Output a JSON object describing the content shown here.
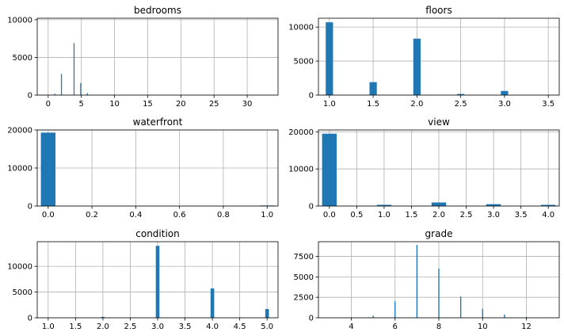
{
  "figure": {
    "bar_color": "#1f77b4",
    "grid_color": "#b0b0b0"
  },
  "chart_data": [
    {
      "type": "bar",
      "title": "bedrooms",
      "xlim": [
        -1.65,
        34.65
      ],
      "ylim": [
        0,
        10200
      ],
      "xticks": [
        0,
        5,
        10,
        15,
        20,
        25,
        30
      ],
      "yticks": [
        0,
        5000,
        10000
      ],
      "ytick_labels": [
        "0",
        "5000",
        "10000"
      ],
      "grid": true,
      "bars": [
        {
          "x": 1.0,
          "width": 0.15,
          "value": 200
        },
        {
          "x": 2.0,
          "width": 0.15,
          "value": 2800
        },
        {
          "x": 3.9,
          "width": 0.15,
          "value": 6900
        },
        {
          "x": 4.9,
          "width": 0.15,
          "value": 1600
        },
        {
          "x": 5.9,
          "width": 0.15,
          "value": 270
        },
        {
          "x": 6.9,
          "width": 0.15,
          "value": 40
        }
      ]
    },
    {
      "type": "bar",
      "title": "floors",
      "xlim": [
        0.875,
        3.625
      ],
      "ylim": [
        0,
        11300
      ],
      "xticks": [
        1.0,
        1.5,
        2.0,
        2.5,
        3.0,
        3.5
      ],
      "xtick_labels": [
        "1.0",
        "1.5",
        "2.0",
        "2.5",
        "3.0",
        "3.5"
      ],
      "yticks": [
        0,
        5000,
        10000
      ],
      "ytick_labels": [
        "0",
        "5000",
        "10000"
      ],
      "grid": true,
      "bars": [
        {
          "x": 1.0,
          "width": 0.0833,
          "value": 10700
        },
        {
          "x": 1.5,
          "width": 0.0833,
          "value": 1900
        },
        {
          "x": 2.0,
          "width": 0.0833,
          "value": 8300
        },
        {
          "x": 2.5,
          "width": 0.0833,
          "value": 160
        },
        {
          "x": 3.0,
          "width": 0.0833,
          "value": 610
        },
        {
          "x": 3.5,
          "width": 0.0833,
          "value": 8
        }
      ]
    },
    {
      "type": "bar",
      "title": "waterfront",
      "xlim": [
        -0.05,
        1.05
      ],
      "ylim": [
        0,
        20000
      ],
      "xticks": [
        0.0,
        0.2,
        0.4,
        0.6,
        0.8,
        1.0
      ],
      "xtick_labels": [
        "0.0",
        "0.2",
        "0.4",
        "0.6",
        "0.8",
        "1.0"
      ],
      "yticks": [
        0,
        10000,
        20000
      ],
      "ytick_labels": [
        "0",
        "10000",
        "20000"
      ],
      "grid": true,
      "bars": [
        {
          "x": 0.0,
          "width": 0.0667,
          "value": 19300
        },
        {
          "x": 1.0,
          "width": 0.0667,
          "value": 150
        }
      ]
    },
    {
      "type": "bar",
      "title": "view",
      "xlim": [
        -0.2,
        4.2
      ],
      "ylim": [
        0,
        20500
      ],
      "xticks": [
        0.0,
        0.5,
        1.0,
        1.5,
        2.0,
        2.5,
        3.0,
        3.5,
        4.0
      ],
      "xtick_labels": [
        "0.0",
        "0.5",
        "1.0",
        "1.5",
        "2.0",
        "2.5",
        "3.0",
        "3.5",
        "4.0"
      ],
      "yticks": [
        0,
        10000,
        20000
      ],
      "ytick_labels": [
        "0",
        "10000",
        "20000"
      ],
      "grid": true,
      "bars": [
        {
          "x": 0.0,
          "width": 0.2667,
          "value": 19500
        },
        {
          "x": 1.0,
          "width": 0.2667,
          "value": 330
        },
        {
          "x": 2.0,
          "width": 0.2667,
          "value": 960
        },
        {
          "x": 3.0,
          "width": 0.2667,
          "value": 510
        },
        {
          "x": 4.0,
          "width": 0.2667,
          "value": 320
        }
      ]
    },
    {
      "type": "bar",
      "title": "condition",
      "xlim": [
        0.8,
        5.2
      ],
      "ylim": [
        0,
        14800
      ],
      "xticks": [
        1.0,
        1.5,
        2.0,
        2.5,
        3.0,
        3.5,
        4.0,
        4.5,
        5.0
      ],
      "xtick_labels": [
        "1.0",
        "1.5",
        "2.0",
        "2.5",
        "3.0",
        "3.5",
        "4.0",
        "4.5",
        "5.0"
      ],
      "yticks": [
        0,
        5000,
        10000
      ],
      "ytick_labels": [
        "0",
        "5000",
        "10000"
      ],
      "grid": true,
      "bars": [
        {
          "x": 1.0,
          "width": 0.0667,
          "value": 30
        },
        {
          "x": 2.0,
          "width": 0.0667,
          "value": 170
        },
        {
          "x": 3.0,
          "width": 0.0667,
          "value": 14000
        },
        {
          "x": 4.0,
          "width": 0.0667,
          "value": 5700
        },
        {
          "x": 5.0,
          "width": 0.0667,
          "value": 1700
        }
      ]
    },
    {
      "type": "bar",
      "title": "grade",
      "xlim": [
        2.5,
        13.5
      ],
      "ylim": [
        0,
        9300
      ],
      "xticks": [
        4,
        6,
        8,
        10,
        12
      ],
      "yticks": [
        0,
        2500,
        5000,
        7500
      ],
      "ytick_labels": [
        "0",
        "2500",
        "5000",
        "7500"
      ],
      "grid": true,
      "bars": [
        {
          "x": 3,
          "width": 0.05,
          "value": 3
        },
        {
          "x": 4,
          "width": 0.05,
          "value": 30
        },
        {
          "x": 5,
          "width": 0.05,
          "value": 250
        },
        {
          "x": 6,
          "width": 0.05,
          "value": 2000
        },
        {
          "x": 7,
          "width": 0.05,
          "value": 8900
        },
        {
          "x": 8,
          "width": 0.05,
          "value": 6000
        },
        {
          "x": 9,
          "width": 0.05,
          "value": 2600
        },
        {
          "x": 10,
          "width": 0.05,
          "value": 1100
        },
        {
          "x": 11,
          "width": 0.05,
          "value": 400
        },
        {
          "x": 12,
          "width": 0.05,
          "value": 90
        },
        {
          "x": 13,
          "width": 0.05,
          "value": 13
        }
      ]
    }
  ]
}
